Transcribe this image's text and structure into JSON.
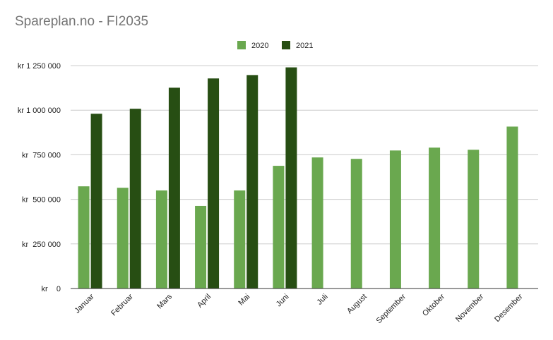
{
  "chart_data": {
    "type": "bar",
    "title": "Spareplan.no - FI2035",
    "xlabel": "",
    "ylabel": "",
    "categories": [
      "Januar",
      "Februar",
      "Mars",
      "April",
      "Mai",
      "Juni",
      "Juli",
      "August",
      "September",
      "Oktober",
      "November",
      "Desember"
    ],
    "series": [
      {
        "name": "2020",
        "color": "#6aa84f",
        "values": [
          573000,
          565000,
          550000,
          463000,
          550000,
          688000,
          735000,
          727000,
          774000,
          790000,
          778000,
          908000
        ]
      },
      {
        "name": "2021",
        "color": "#274e13",
        "values": [
          980000,
          1008000,
          1126000,
          1178000,
          1197000,
          1240000,
          null,
          null,
          null,
          null,
          null,
          null
        ]
      }
    ],
    "ylim": [
      0,
      1250000
    ],
    "yticks": [
      {
        "value": 0,
        "label": "kr    0"
      },
      {
        "value": 250000,
        "label": "kr  250 000"
      },
      {
        "value": 500000,
        "label": "kr  500 000"
      },
      {
        "value": 750000,
        "label": "kr  750 000"
      },
      {
        "value": 1000000,
        "label": "kr 1 000 000"
      },
      {
        "value": 1250000,
        "label": "kr 1 250 000"
      }
    ],
    "grid": true,
    "legend": "top-center"
  }
}
